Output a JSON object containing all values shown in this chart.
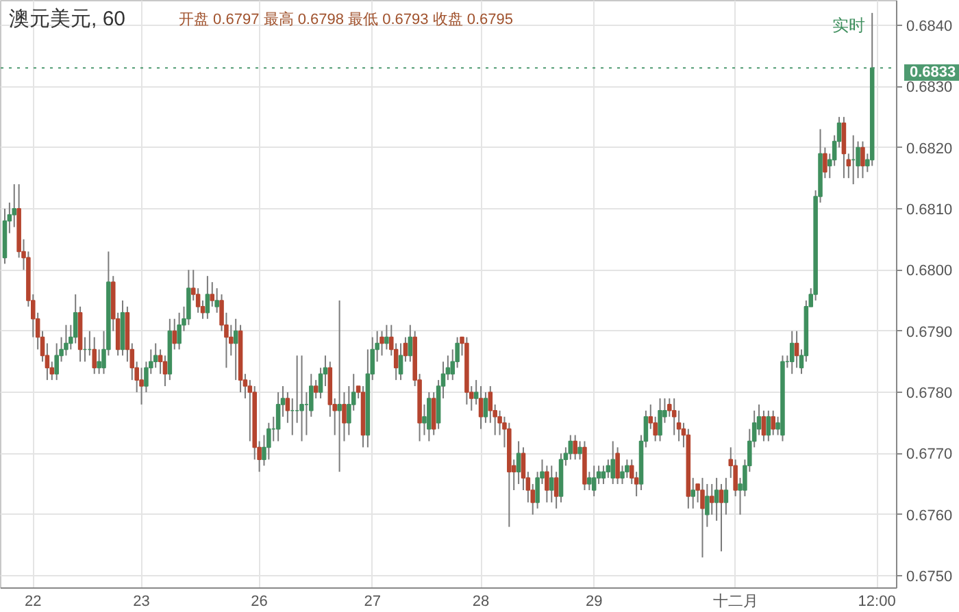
{
  "chart_data": {
    "type": "candlestick",
    "title": "澳元美元, 60",
    "subtitle": "开盘 0.6797 最高 0.6798 最低 0.6793 收盘 0.6795",
    "annotations": [
      "实时"
    ],
    "categories": [
      null,
      null,
      null,
      null,
      null,
      null,
      "22",
      null,
      null,
      null,
      null,
      null,
      null,
      null,
      null,
      null,
      null,
      null,
      null,
      null,
      null,
      null,
      null,
      null,
      null,
      null,
      null,
      null,
      null,
      "23",
      null,
      null,
      null,
      null,
      null,
      null,
      null,
      null,
      null,
      null,
      null,
      null,
      null,
      null,
      null,
      null,
      null,
      null,
      null,
      null,
      null,
      null,
      null,
      null,
      "26",
      null,
      null,
      null,
      null,
      null,
      null,
      null,
      null,
      null,
      null,
      null,
      null,
      null,
      null,
      null,
      null,
      null,
      null,
      null,
      null,
      null,
      null,
      null,
      "27",
      null,
      null,
      null,
      null,
      null,
      null,
      null,
      null,
      null,
      null,
      null,
      null,
      null,
      null,
      null,
      null,
      null,
      null,
      null,
      null,
      null,
      null,
      "28",
      null,
      null,
      null,
      null,
      null,
      null,
      null,
      null,
      null,
      null,
      null,
      null,
      null,
      null,
      null,
      null,
      null,
      null,
      null,
      null,
      null,
      null,
      null,
      "29",
      null,
      null,
      null,
      null,
      null,
      null,
      null,
      null,
      null,
      null,
      null,
      null,
      null,
      null,
      null,
      null,
      null,
      null,
      null,
      null,
      null,
      null,
      null,
      null,
      null,
      null,
      null,
      null,
      null,
      "十二月",
      null,
      null,
      null,
      null,
      null,
      null,
      null,
      null,
      null,
      null,
      null,
      null,
      null,
      null,
      null,
      null,
      null,
      null,
      null,
      null,
      null,
      null,
      null,
      null,
      null,
      null,
      null,
      null,
      null,
      "12:00"
    ],
    "ohlc": [
      [
        0.6802,
        0.681,
        0.6801,
        0.6808
      ],
      [
        0.6808,
        0.6811,
        0.6806,
        0.6809
      ],
      [
        0.6809,
        0.6814,
        0.6807,
        0.681
      ],
      [
        0.681,
        0.6814,
        0.6802,
        0.6803
      ],
      [
        0.6803,
        0.6805,
        0.68,
        0.6802
      ],
      [
        0.6802,
        0.6803,
        0.6794,
        0.6795
      ],
      [
        0.6795,
        0.6796,
        0.6789,
        0.6792
      ],
      [
        0.6792,
        0.6793,
        0.6787,
        0.6789
      ],
      [
        0.6789,
        0.679,
        0.6785,
        0.6786
      ],
      [
        0.6786,
        0.6788,
        0.6782,
        0.6784
      ],
      [
        0.6784,
        0.6785,
        0.6782,
        0.6783
      ],
      [
        0.6783,
        0.6788,
        0.6782,
        0.6786
      ],
      [
        0.6786,
        0.6789,
        0.6785,
        0.6787
      ],
      [
        0.6787,
        0.6791,
        0.6786,
        0.6788
      ],
      [
        0.6788,
        0.6791,
        0.6787,
        0.6789
      ],
      [
        0.6789,
        0.6796,
        0.6788,
        0.6793
      ],
      [
        0.6793,
        0.6794,
        0.6785,
        0.6787
      ],
      [
        0.6787,
        0.6789,
        0.6785,
        0.6787
      ],
      [
        0.6787,
        0.679,
        0.6786,
        0.6787
      ],
      [
        0.6787,
        0.6789,
        0.6783,
        0.6784
      ],
      [
        0.6784,
        0.6787,
        0.6783,
        0.6785
      ],
      [
        0.6784,
        0.679,
        0.6783,
        0.6787
      ],
      [
        0.6787,
        0.6803,
        0.6786,
        0.6798
      ],
      [
        0.6798,
        0.6799,
        0.679,
        0.6792
      ],
      [
        0.6792,
        0.6793,
        0.6786,
        0.6787
      ],
      [
        0.6787,
        0.6795,
        0.6786,
        0.6793
      ],
      [
        0.6793,
        0.6794,
        0.6785,
        0.6787
      ],
      [
        0.6787,
        0.6788,
        0.6782,
        0.6784
      ],
      [
        0.6784,
        0.6785,
        0.678,
        0.6782
      ],
      [
        0.6782,
        0.6784,
        0.6778,
        0.6781
      ],
      [
        0.6781,
        0.6785,
        0.678,
        0.6784
      ],
      [
        0.6784,
        0.6787,
        0.6783,
        0.6785
      ],
      [
        0.6785,
        0.6788,
        0.6784,
        0.6786
      ],
      [
        0.6786,
        0.6787,
        0.6783,
        0.6785
      ],
      [
        0.6785,
        0.6786,
        0.6781,
        0.6783
      ],
      [
        0.6783,
        0.6792,
        0.6782,
        0.679
      ],
      [
        0.679,
        0.6792,
        0.6787,
        0.6788
      ],
      [
        0.6788,
        0.6793,
        0.6787,
        0.6791
      ],
      [
        0.6791,
        0.6794,
        0.679,
        0.6792
      ],
      [
        0.6792,
        0.68,
        0.6791,
        0.6797
      ],
      [
        0.6797,
        0.68,
        0.6795,
        0.6796
      ],
      [
        0.6796,
        0.6797,
        0.6793,
        0.6794
      ],
      [
        0.6794,
        0.6795,
        0.6792,
        0.6793
      ],
      [
        0.6793,
        0.6799,
        0.6792,
        0.6796
      ],
      [
        0.6796,
        0.6798,
        0.6794,
        0.6795
      ],
      [
        0.6794,
        0.6797,
        0.6793,
        0.6795
      ],
      [
        0.6795,
        0.6796,
        0.679,
        0.6791
      ],
      [
        0.6791,
        0.6793,
        0.6784,
        0.6789
      ],
      [
        0.6789,
        0.6791,
        0.6786,
        0.6788
      ],
      [
        0.6788,
        0.6792,
        0.6782,
        0.679
      ],
      [
        0.679,
        0.6791,
        0.678,
        0.6782
      ],
      [
        0.6782,
        0.6783,
        0.6779,
        0.6781
      ],
      [
        0.6781,
        0.6782,
        0.6772,
        0.678
      ],
      [
        0.678,
        0.6781,
        0.6769,
        0.6771
      ],
      [
        0.6771,
        0.6772,
        0.6767,
        0.6769
      ],
      [
        0.6769,
        0.6773,
        0.6768,
        0.6771
      ],
      [
        0.6771,
        0.6775,
        0.6769,
        0.6774
      ],
      [
        0.6774,
        0.6776,
        0.6772,
        0.6774
      ],
      [
        0.6774,
        0.678,
        0.6772,
        0.6778
      ],
      [
        0.6778,
        0.6781,
        0.6776,
        0.6779
      ],
      [
        0.6779,
        0.678,
        0.6775,
        0.6777
      ],
      [
        0.6777,
        0.6779,
        0.6773,
        0.6777
      ],
      [
        0.6777,
        0.6786,
        0.6775,
        0.6777
      ],
      [
        0.6777,
        0.6786,
        0.6772,
        0.6778
      ],
      [
        0.6778,
        0.678,
        0.6773,
        0.6778
      ],
      [
        0.6777,
        0.6783,
        0.6776,
        0.6781
      ],
      [
        0.6781,
        0.6782,
        0.6779,
        0.678
      ],
      [
        0.678,
        0.6784,
        0.6779,
        0.6783
      ],
      [
        0.6783,
        0.6786,
        0.6781,
        0.6784
      ],
      [
        0.6784,
        0.6785,
        0.6776,
        0.6778
      ],
      [
        0.6778,
        0.6779,
        0.6773,
        0.6777
      ],
      [
        0.6777,
        0.6795,
        0.6767,
        0.6778
      ],
      [
        0.6778,
        0.678,
        0.6772,
        0.6775
      ],
      [
        0.6775,
        0.6781,
        0.6773,
        0.6778
      ],
      [
        0.6778,
        0.6783,
        0.6777,
        0.678
      ],
      [
        0.6781,
        0.6781,
        0.6779,
        0.678
      ],
      [
        0.678,
        0.6781,
        0.6771,
        0.6773
      ],
      [
        0.6773,
        0.6787,
        0.6771,
        0.6783
      ],
      [
        0.6783,
        0.6789,
        0.6782,
        0.6787
      ],
      [
        0.6787,
        0.679,
        0.6785,
        0.6788
      ],
      [
        0.6789,
        0.679,
        0.6786,
        0.6788
      ],
      [
        0.6788,
        0.6791,
        0.6787,
        0.6789
      ],
      [
        0.6789,
        0.6791,
        0.6786,
        0.6787
      ],
      [
        0.6787,
        0.6788,
        0.6782,
        0.6784
      ],
      [
        0.6783,
        0.6788,
        0.6782,
        0.6786
      ],
      [
        0.6788,
        0.6789,
        0.6785,
        0.6786
      ],
      [
        0.6786,
        0.6791,
        0.6785,
        0.6789
      ],
      [
        0.6789,
        0.679,
        0.6781,
        0.6782
      ],
      [
        0.6782,
        0.6783,
        0.6772,
        0.6775
      ],
      [
        0.6775,
        0.6778,
        0.6773,
        0.6776
      ],
      [
        0.6774,
        0.678,
        0.6772,
        0.6779
      ],
      [
        0.6779,
        0.678,
        0.6773,
        0.6774
      ],
      [
        0.6775,
        0.6782,
        0.6774,
        0.6781
      ],
      [
        0.6781,
        0.6785,
        0.6779,
        0.6783
      ],
      [
        0.6783,
        0.6786,
        0.6782,
        0.6784
      ],
      [
        0.6783,
        0.6787,
        0.6782,
        0.6785
      ],
      [
        0.6785,
        0.6789,
        0.6784,
        0.6788
      ],
      [
        0.6789,
        0.6789,
        0.6786,
        0.6788
      ],
      [
        0.6788,
        0.6789,
        0.6778,
        0.678
      ],
      [
        0.678,
        0.6781,
        0.6777,
        0.6779
      ],
      [
        0.6779,
        0.6782,
        0.6778,
        0.678
      ],
      [
        0.6779,
        0.6781,
        0.6774,
        0.6776
      ],
      [
        0.6776,
        0.678,
        0.6775,
        0.6779
      ],
      [
        0.678,
        0.6781,
        0.6775,
        0.6777
      ],
      [
        0.6777,
        0.6778,
        0.6773,
        0.6776
      ],
      [
        0.6776,
        0.6777,
        0.6773,
        0.6775
      ],
      [
        0.6775,
        0.6776,
        0.6771,
        0.6774
      ],
      [
        0.6774,
        0.6775,
        0.6758,
        0.6767
      ],
      [
        0.6768,
        0.6769,
        0.6764,
        0.6767
      ],
      [
        0.6767,
        0.6772,
        0.6765,
        0.677
      ],
      [
        0.677,
        0.6771,
        0.6764,
        0.6766
      ],
      [
        0.6766,
        0.6767,
        0.6762,
        0.6764
      ],
      [
        0.6764,
        0.6765,
        0.676,
        0.6762
      ],
      [
        0.6762,
        0.6767,
        0.6761,
        0.6766
      ],
      [
        0.6766,
        0.6769,
        0.6765,
        0.6767
      ],
      [
        0.6767,
        0.6768,
        0.6762,
        0.6764
      ],
      [
        0.6764,
        0.6768,
        0.6762,
        0.6766
      ],
      [
        0.6766,
        0.6767,
        0.6761,
        0.6763
      ],
      [
        0.6763,
        0.677,
        0.6762,
        0.6769
      ],
      [
        0.6769,
        0.6771,
        0.6768,
        0.677
      ],
      [
        0.677,
        0.6773,
        0.6769,
        0.6772
      ],
      [
        0.6772,
        0.6773,
        0.6769,
        0.677
      ],
      [
        0.677,
        0.6772,
        0.6769,
        0.6771
      ],
      [
        0.6771,
        0.6772,
        0.6764,
        0.6765
      ],
      [
        0.6765,
        0.6767,
        0.6764,
        0.6766
      ],
      [
        0.6764,
        0.6768,
        0.6763,
        0.6766
      ],
      [
        0.6766,
        0.6768,
        0.6765,
        0.6767
      ],
      [
        0.6766,
        0.6768,
        0.6765,
        0.6767
      ],
      [
        0.6767,
        0.6769,
        0.6766,
        0.6768
      ],
      [
        0.6766,
        0.6772,
        0.6765,
        0.6769
      ],
      [
        0.677,
        0.6771,
        0.6765,
        0.6766
      ],
      [
        0.6766,
        0.6768,
        0.6765,
        0.6767
      ],
      [
        0.6767,
        0.6769,
        0.6766,
        0.6768
      ],
      [
        0.6768,
        0.6769,
        0.6765,
        0.6766
      ],
      [
        0.6766,
        0.6767,
        0.6763,
        0.6765
      ],
      [
        0.6765,
        0.6773,
        0.6764,
        0.6772
      ],
      [
        0.6772,
        0.6777,
        0.6771,
        0.6776
      ],
      [
        0.6776,
        0.6778,
        0.6774,
        0.6775
      ],
      [
        0.6775,
        0.6776,
        0.6772,
        0.6773
      ],
      [
        0.6773,
        0.6779,
        0.6772,
        0.6777
      ],
      [
        0.6776,
        0.6779,
        0.6775,
        0.6777
      ],
      [
        0.6778,
        0.6779,
        0.6776,
        0.6777
      ],
      [
        0.6777,
        0.6779,
        0.6773,
        0.6776
      ],
      [
        0.6775,
        0.6777,
        0.6772,
        0.6774
      ],
      [
        0.6774,
        0.6775,
        0.6771,
        0.6773
      ],
      [
        0.6773,
        0.6774,
        0.6761,
        0.6763
      ],
      [
        0.6763,
        0.6766,
        0.6761,
        0.6764
      ],
      [
        0.6765,
        0.6765,
        0.6762,
        0.6764
      ],
      [
        0.6764,
        0.6766,
        0.6753,
        0.6761
      ],
      [
        0.676,
        0.6765,
        0.6758,
        0.6763
      ],
      [
        0.6763,
        0.6765,
        0.676,
        0.6762
      ],
      [
        0.6762,
        0.6766,
        0.6759,
        0.6764
      ],
      [
        0.6764,
        0.6765,
        0.6754,
        0.6762
      ],
      [
        0.6762,
        0.6766,
        0.676,
        0.6764
      ],
      [
        0.6769,
        0.6771,
        0.6766,
        0.6768
      ],
      [
        0.6768,
        0.6769,
        0.6763,
        0.6764
      ],
      [
        0.6764,
        0.6766,
        0.676,
        0.6765
      ],
      [
        0.6764,
        0.6769,
        0.6763,
        0.6768
      ],
      [
        0.6768,
        0.6774,
        0.6767,
        0.6772
      ],
      [
        0.6772,
        0.6777,
        0.6771,
        0.6775
      ],
      [
        0.6774,
        0.6778,
        0.6773,
        0.6776
      ],
      [
        0.6776,
        0.6777,
        0.6772,
        0.6773
      ],
      [
        0.6773,
        0.6777,
        0.6772,
        0.6776
      ],
      [
        0.6776,
        0.6777,
        0.6773,
        0.6774
      ],
      [
        0.6774,
        0.6776,
        0.6773,
        0.6775
      ],
      [
        0.6773,
        0.6786,
        0.6772,
        0.6785
      ],
      [
        0.6785,
        0.6786,
        0.6784,
        0.6785
      ],
      [
        0.6785,
        0.679,
        0.6783,
        0.6788
      ],
      [
        0.6788,
        0.679,
        0.6784,
        0.6786
      ],
      [
        0.6784,
        0.6787,
        0.6783,
        0.6786
      ],
      [
        0.6786,
        0.6795,
        0.6785,
        0.6794
      ],
      [
        0.6794,
        0.6797,
        0.6794,
        0.6796
      ],
      [
        0.6796,
        0.6813,
        0.6795,
        0.6812
      ],
      [
        0.6812,
        0.6823,
        0.6811,
        0.6819
      ],
      [
        0.6819,
        0.682,
        0.6815,
        0.6816
      ],
      [
        0.6817,
        0.6819,
        0.6815,
        0.6818
      ],
      [
        0.6818,
        0.6822,
        0.6817,
        0.6821
      ],
      [
        0.6821,
        0.6825,
        0.682,
        0.6824
      ],
      [
        0.6824,
        0.6825,
        0.6815,
        0.6819
      ],
      [
        0.6818,
        0.6819,
        0.6815,
        0.6817
      ],
      [
        0.6818,
        0.6822,
        0.6814,
        0.6818
      ],
      [
        0.6817,
        0.6821,
        0.6815,
        0.682
      ],
      [
        0.682,
        0.6821,
        0.6815,
        0.6817
      ],
      [
        0.6817,
        0.6819,
        0.6816,
        0.6818
      ],
      [
        0.6818,
        0.6842,
        0.6817,
        0.6833
      ],
      null
    ],
    "colors": [
      "#3f8f5e",
      "#3f8f5e",
      "#3f8f5e",
      "#b5452f",
      "#b5452f",
      "#b5452f",
      "#b5452f",
      "#b5452f",
      "#b5452f",
      "#b5452f",
      "#b5452f",
      "#3f8f5e",
      "#3f8f5e",
      "#3f8f5e",
      "#3f8f5e",
      "#3f8f5e",
      "#b5452f",
      "#3f8f5e",
      "#3f8f5e",
      "#b5452f",
      "#3f8f5e",
      "#3f8f5e",
      "#3f8f5e",
      "#b5452f",
      "#b5452f",
      "#3f8f5e",
      "#b5452f",
      "#b5452f",
      "#b5452f",
      "#b5452f",
      "#3f8f5e",
      "#3f8f5e",
      "#3f8f5e",
      "#b5452f",
      "#b5452f",
      "#3f8f5e",
      "#b5452f",
      "#3f8f5e",
      "#3f8f5e",
      "#3f8f5e",
      "#b5452f",
      "#b5452f",
      "#b5452f",
      "#3f8f5e",
      "#b5452f",
      "#3f8f5e",
      "#b5452f",
      "#b5452f",
      "#b5452f",
      "#3f8f5e",
      "#b5452f",
      "#b5452f",
      "#b5452f",
      "#b5452f",
      "#b5452f",
      "#3f8f5e",
      "#3f8f5e",
      "#3f8f5e",
      "#3f8f5e",
      "#3f8f5e",
      "#b5452f",
      "#3f8f5e",
      "#3f8f5e",
      "#3f8f5e",
      "#3f8f5e",
      "#3f8f5e",
      "#b5452f",
      "#3f8f5e",
      "#3f8f5e",
      "#b5452f",
      "#b5452f",
      "#3f8f5e",
      "#b5452f",
      "#3f8f5e",
      "#3f8f5e",
      "#b5452f",
      "#b5452f",
      "#3f8f5e",
      "#3f8f5e",
      "#3f8f5e",
      "#b5452f",
      "#3f8f5e",
      "#b5452f",
      "#b5452f",
      "#3f8f5e",
      "#b5452f",
      "#3f8f5e",
      "#b5452f",
      "#b5452f",
      "#3f8f5e",
      "#3f8f5e",
      "#b5452f",
      "#3f8f5e",
      "#3f8f5e",
      "#3f8f5e",
      "#3f8f5e",
      "#3f8f5e",
      "#b5452f",
      "#b5452f",
      "#b5452f",
      "#3f8f5e",
      "#b5452f",
      "#3f8f5e",
      "#b5452f",
      "#b5452f",
      "#b5452f",
      "#b5452f",
      "#b5452f",
      "#b5452f",
      "#3f8f5e",
      "#b5452f",
      "#b5452f",
      "#b5452f",
      "#3f8f5e",
      "#3f8f5e",
      "#b5452f",
      "#3f8f5e",
      "#b5452f",
      "#3f8f5e",
      "#3f8f5e",
      "#3f8f5e",
      "#b5452f",
      "#3f8f5e",
      "#b5452f",
      "#3f8f5e",
      "#3f8f5e",
      "#3f8f5e",
      "#3f8f5e",
      "#3f8f5e",
      "#3f8f5e",
      "#b5452f",
      "#3f8f5e",
      "#3f8f5e",
      "#b5452f",
      "#b5452f",
      "#3f8f5e",
      "#3f8f5e",
      "#b5452f",
      "#b5452f",
      "#3f8f5e",
      "#3f8f5e",
      "#b5452f",
      "#b5452f",
      "#b5452f",
      "#b5452f",
      "#b5452f",
      "#3f8f5e",
      "#b5452f",
      "#b5452f",
      "#3f8f5e",
      "#b5452f",
      "#3f8f5e",
      "#b5452f",
      "#3f8f5e",
      "#b5452f",
      "#b5452f",
      "#3f8f5e",
      "#3f8f5e",
      "#3f8f5e",
      "#3f8f5e",
      "#3f8f5e",
      "#b5452f",
      "#3f8f5e",
      "#b5452f",
      "#3f8f5e",
      "#3f8f5e",
      "#3f8f5e",
      "#3f8f5e",
      "#b5452f",
      "#3f8f5e",
      "#3f8f5e",
      "#3f8f5e",
      "#3f8f5e",
      "#3f8f5e",
      "#b5452f",
      "#3f8f5e",
      "#3f8f5e",
      "#3f8f5e",
      "#b5452f",
      "#b5452f",
      "#3f8f5e",
      "#3f8f5e",
      "#b5452f",
      "#3f8f5e",
      "#3f8f5e",
      null
    ],
    "ylim": [
      0.6748,
      0.6844
    ],
    "yticks": [
      {
        "value": 0.675,
        "label": "0.6750"
      },
      {
        "value": 0.676,
        "label": "0.6760"
      },
      {
        "value": 0.677,
        "label": "0.6770"
      },
      {
        "value": 0.678,
        "label": "0.6780"
      },
      {
        "value": 0.679,
        "label": "0.6790"
      },
      {
        "value": 0.68,
        "label": "0.6800"
      },
      {
        "value": 0.681,
        "label": "0.6810"
      },
      {
        "value": 0.682,
        "label": "0.6820"
      },
      {
        "value": 0.683,
        "label": "0.6830"
      },
      {
        "value": 0.684,
        "label": "0.6840"
      }
    ],
    "grid": true,
    "ref_lines": [
      {
        "axis": "y",
        "value": 0.6833,
        "label": "0.6833",
        "color": "#4e9a70",
        "line_style": "dotted"
      }
    ]
  }
}
